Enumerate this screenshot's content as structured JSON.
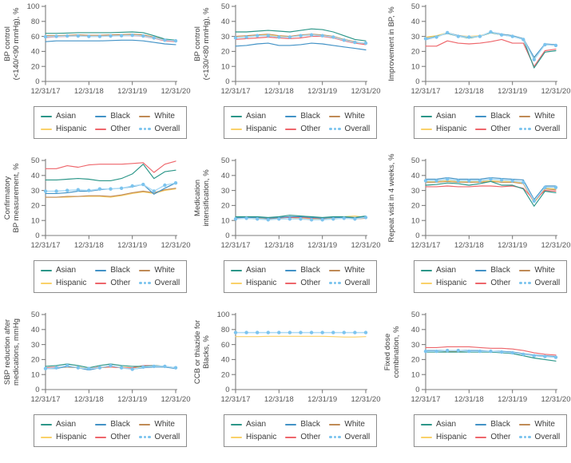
{
  "figure": {
    "x_tick_labels": [
      "12/31/17",
      "12/31/18",
      "12/31/19",
      "12/31/20"
    ],
    "n_points": 13
  },
  "colors": {
    "asian": "#2b9688",
    "black": "#4292c6",
    "white": "#bf8a55",
    "hispanic": "#fad169",
    "other": "#ee666b",
    "overall_dot": "#7cc4ee",
    "overall_line": "#abdaf5",
    "axis": "#7d7d7d",
    "tick_text": "#565656",
    "label_text": "#3c3c3c"
  },
  "legend": {
    "items": [
      {
        "key": "asian",
        "label": "Asian"
      },
      {
        "key": "black",
        "label": "Black"
      },
      {
        "key": "white",
        "label": "White"
      },
      {
        "key": "hispanic",
        "label": "Hispanic"
      },
      {
        "key": "other",
        "label": "Other"
      },
      {
        "key": "overall",
        "label": "Overall"
      }
    ]
  },
  "chart_data": [
    {
      "id": "bp-control-140-90",
      "type": "line",
      "ylabel_lines": [
        "BP control",
        "(<140/<90 mmHg), %"
      ],
      "ylim": [
        0,
        100
      ],
      "ytick_step": 20,
      "series": [
        {
          "key": "white",
          "name": "White",
          "values": [
            61,
            61,
            61.5,
            62,
            61.5,
            61.5,
            62,
            62.5,
            63,
            62,
            59,
            55.5,
            54.5
          ]
        },
        {
          "key": "hispanic",
          "name": "Hispanic",
          "values": [
            59.5,
            60,
            60.5,
            60.5,
            60,
            60,
            60.5,
            61,
            61.5,
            60.5,
            58,
            54.5,
            53.5
          ]
        },
        {
          "key": "other",
          "name": "Other",
          "values": [
            58.5,
            59.5,
            60,
            60.5,
            60,
            60,
            60.5,
            61,
            61,
            60,
            57.5,
            54,
            53
          ]
        },
        {
          "key": "black",
          "name": "Black",
          "values": [
            53,
            54,
            54,
            54,
            54,
            54,
            54.5,
            55,
            55,
            54,
            52,
            50,
            49
          ]
        },
        {
          "key": "asian",
          "name": "Asian",
          "values": [
            64,
            64,
            64.5,
            65,
            65,
            65,
            65,
            65.5,
            66,
            65,
            61,
            56.5,
            55
          ]
        },
        {
          "key": "overall",
          "name": "Overall",
          "values": [
            59.5,
            60,
            60.5,
            60.5,
            60,
            60,
            60.5,
            61,
            61.5,
            60.5,
            58,
            55,
            54
          ]
        }
      ]
    },
    {
      "id": "bp-control-130-80",
      "type": "line",
      "ylabel_lines": [
        "BP control",
        "(<130/<80 mmHg), %"
      ],
      "ylim": [
        0,
        50
      ],
      "ytick_step": 10,
      "series": [
        {
          "key": "white",
          "name": "White",
          "values": [
            30,
            30.5,
            31,
            31.5,
            30.5,
            30,
            31,
            31.5,
            31,
            30,
            28,
            26.5,
            25
          ]
        },
        {
          "key": "hispanic",
          "name": "Hispanic",
          "values": [
            29,
            29.5,
            30.5,
            31,
            30,
            29.5,
            30.5,
            31,
            30.5,
            29.5,
            27.5,
            26,
            25.5
          ]
        },
        {
          "key": "other",
          "name": "Other",
          "values": [
            28,
            28.5,
            29,
            29.5,
            29,
            28.5,
            29,
            30,
            30,
            29,
            27,
            25.5,
            24.5
          ]
        },
        {
          "key": "black",
          "name": "Black",
          "values": [
            23.5,
            24,
            25,
            25.5,
            24,
            24,
            24.5,
            25.5,
            25,
            24,
            23,
            22,
            21
          ]
        },
        {
          "key": "asian",
          "name": "Asian",
          "values": [
            33,
            33,
            33.5,
            34,
            33.5,
            33,
            34,
            35,
            34.5,
            33,
            30.5,
            28,
            27
          ]
        },
        {
          "key": "overall",
          "name": "Overall",
          "values": [
            29,
            29.5,
            30.5,
            30.5,
            29.5,
            29.5,
            30.5,
            31,
            30.5,
            29.5,
            27.5,
            26,
            25.5
          ]
        }
      ]
    },
    {
      "id": "improvement-in-bp",
      "type": "line",
      "ylabel_lines": [
        "Improvement in BP, %"
      ],
      "ylim": [
        0,
        50
      ],
      "ytick_step": 10,
      "series": [
        {
          "key": "white",
          "name": "White",
          "values": [
            29,
            30,
            32,
            30,
            29.5,
            30,
            32.5,
            31,
            30,
            28,
            15,
            24.5,
            24
          ]
        },
        {
          "key": "hispanic",
          "name": "Hispanic",
          "values": [
            29.5,
            30.5,
            32.5,
            30.5,
            30,
            30.5,
            32.5,
            31.5,
            30.5,
            28.5,
            15.5,
            24.5,
            24
          ]
        },
        {
          "key": "other",
          "name": "Other",
          "values": [
            23.5,
            23.5,
            27,
            25.5,
            25,
            25.5,
            26.5,
            28,
            25.5,
            25.5,
            10,
            20.5,
            21.5
          ]
        },
        {
          "key": "asian",
          "name": "Asian",
          "values": [
            28.5,
            30,
            32,
            30,
            29,
            30,
            32.5,
            31,
            30,
            28,
            9,
            19.5,
            20.5
          ]
        },
        {
          "key": "black",
          "name": "Black",
          "values": [
            28,
            29.5,
            32.5,
            30.5,
            29.5,
            30,
            33,
            31.5,
            30.5,
            28.5,
            16,
            25,
            24.5
          ]
        },
        {
          "key": "overall",
          "name": "Overall",
          "values": [
            28.5,
            29.5,
            32.5,
            30,
            29.5,
            30,
            33,
            31,
            30,
            28,
            14.5,
            24.5,
            24
          ]
        }
      ]
    },
    {
      "id": "confirmatory-bp-measurement",
      "type": "line",
      "ylabel_lines": [
        "Confirmatory",
        "BP measurement, %"
      ],
      "ylim": [
        0,
        50
      ],
      "ytick_step": 10,
      "series": [
        {
          "key": "hispanic",
          "name": "Hispanic",
          "values": [
            25.5,
            25.5,
            25.5,
            26,
            26,
            26,
            25.5,
            26.5,
            28,
            29,
            28,
            30,
            31
          ]
        },
        {
          "key": "white",
          "name": "White",
          "values": [
            25.5,
            25.5,
            26,
            26,
            26.5,
            26.5,
            26,
            27,
            28.5,
            29.5,
            28.5,
            30.5,
            31.5
          ]
        },
        {
          "key": "other",
          "name": "Other",
          "values": [
            44.5,
            44.5,
            46.5,
            45.5,
            47,
            47.5,
            47.5,
            47.5,
            48,
            48.5,
            42,
            47.5,
            49.5
          ]
        },
        {
          "key": "black",
          "name": "Black",
          "values": [
            28,
            28,
            28.5,
            29.5,
            29.5,
            30.5,
            31,
            31.5,
            32.5,
            34,
            27.5,
            31.5,
            35
          ]
        },
        {
          "key": "asian",
          "name": "Asian",
          "values": [
            37,
            37,
            37.5,
            38,
            37.5,
            36.5,
            36.5,
            38,
            41,
            47.5,
            38,
            42.5,
            43.5
          ]
        },
        {
          "key": "overall",
          "name": "Overall",
          "values": [
            29.5,
            29.5,
            30,
            30.5,
            30,
            31,
            31,
            31.5,
            33,
            34,
            29.5,
            33.5,
            35
          ]
        }
      ]
    },
    {
      "id": "medication-intensification",
      "type": "line",
      "ylabel_lines": [
        "Medication",
        "intensification, %"
      ],
      "ylim": [
        0,
        50
      ],
      "ytick_step": 10,
      "series": [
        {
          "key": "white",
          "name": "White",
          "values": [
            11.5,
            11.5,
            11,
            11,
            11.5,
            11,
            11,
            10.5,
            11,
            11,
            11.5,
            11,
            11.5
          ]
        },
        {
          "key": "hispanic",
          "name": "Hispanic",
          "values": [
            12,
            12,
            11.5,
            11.5,
            12,
            12,
            11.5,
            11,
            11.5,
            11.5,
            12.5,
            13,
            12
          ]
        },
        {
          "key": "other",
          "name": "Other",
          "values": [
            12,
            12.5,
            12,
            11.5,
            12,
            12,
            12,
            11.5,
            11.5,
            12,
            12,
            12,
            12
          ]
        },
        {
          "key": "black",
          "name": "Black",
          "values": [
            12,
            12,
            12,
            11.5,
            12,
            12.5,
            12.5,
            12,
            11.5,
            12,
            12,
            11.5,
            12.5
          ]
        },
        {
          "key": "asian",
          "name": "Asian",
          "values": [
            12.5,
            12.5,
            12.5,
            12,
            12.5,
            13.5,
            13,
            12.5,
            12,
            12.5,
            12.5,
            12,
            13
          ]
        },
        {
          "key": "overall",
          "name": "Overall",
          "values": [
            11,
            11.5,
            11,
            10.5,
            11,
            11,
            11,
            10.5,
            10.5,
            11,
            11.5,
            11,
            12
          ]
        }
      ]
    },
    {
      "id": "repeat-visit-4-weeks",
      "type": "line",
      "ylabel_lines": [
        "Repeat visit in 4 weeks, %"
      ],
      "ylim": [
        0,
        50
      ],
      "ytick_step": 10,
      "series": [
        {
          "key": "white",
          "name": "White",
          "values": [
            35.5,
            35.5,
            36,
            35.5,
            35.5,
            35.5,
            36,
            35.5,
            35.5,
            34.5,
            22,
            31,
            30.5
          ]
        },
        {
          "key": "hispanic",
          "name": "Hispanic",
          "values": [
            36,
            36,
            36.5,
            36,
            36,
            36,
            36.5,
            36,
            36,
            35,
            22.5,
            31.5,
            31
          ]
        },
        {
          "key": "other",
          "name": "Other",
          "values": [
            32.5,
            32.5,
            33,
            32.5,
            32.5,
            33,
            33,
            32.5,
            33,
            31.5,
            23.5,
            30,
            29.5
          ]
        },
        {
          "key": "asian",
          "name": "Asian",
          "values": [
            33.5,
            34,
            35,
            34.5,
            33.5,
            34.5,
            36,
            33.5,
            33.5,
            31,
            19.5,
            29.5,
            28.5
          ]
        },
        {
          "key": "black",
          "name": "Black",
          "values": [
            37.5,
            37.5,
            38.5,
            37.5,
            37.5,
            37.5,
            38.5,
            38,
            37.5,
            37,
            24,
            33,
            33
          ]
        },
        {
          "key": "overall",
          "name": "Overall",
          "values": [
            36.5,
            36.5,
            37.5,
            36.5,
            36.5,
            36.5,
            37.5,
            37,
            36.5,
            35.5,
            23,
            32,
            32
          ]
        }
      ]
    },
    {
      "id": "sbp-reduction-after-medications",
      "type": "line",
      "ylabel_lines": [
        "SBP reduction after",
        "medications, mmHg"
      ],
      "ylim": [
        0,
        50
      ],
      "ytick_step": 10,
      "series": [
        {
          "key": "white",
          "name": "White",
          "values": [
            14.5,
            14.5,
            15,
            14.5,
            14,
            14.5,
            15,
            14.5,
            14.5,
            15,
            15.5,
            15,
            14.5
          ]
        },
        {
          "key": "hispanic",
          "name": "Hispanic",
          "values": [
            14.5,
            15,
            15.5,
            15,
            14,
            15,
            15.5,
            15,
            14.5,
            15.5,
            15.5,
            15.5,
            14.5
          ]
        },
        {
          "key": "other",
          "name": "Other",
          "values": [
            14.5,
            15,
            15.5,
            14.5,
            14,
            15,
            15,
            14.5,
            14.5,
            16,
            16,
            15.5,
            14.5
          ]
        },
        {
          "key": "black",
          "name": "Black",
          "values": [
            14,
            14,
            15.5,
            14.5,
            13,
            14.5,
            16,
            14.5,
            13.5,
            14.5,
            15,
            15,
            14
          ]
        },
        {
          "key": "asian",
          "name": "Asian",
          "values": [
            15.5,
            16,
            17,
            16,
            14.5,
            16,
            17,
            16,
            15.5,
            15.5,
            16,
            15.5,
            14.5
          ]
        },
        {
          "key": "overall",
          "name": "Overall",
          "values": [
            14,
            14.5,
            16,
            14.5,
            14,
            14.5,
            16,
            14.5,
            13.5,
            15,
            15.5,
            15.5,
            14.5
          ]
        }
      ]
    },
    {
      "id": "ccb-or-thiazide-for-blacks",
      "type": "line",
      "ylabel_lines": [
        "CCB or thiazide for",
        "Blacks, %"
      ],
      "ylim": [
        0,
        100
      ],
      "ytick_step": 20,
      "series": [
        {
          "key": "hispanic",
          "name": "Hispanic",
          "values": [
            70.5,
            70.5,
            70.5,
            71,
            71,
            71,
            71,
            71,
            71,
            70.5,
            70,
            70,
            70.5
          ]
        },
        {
          "key": "overall",
          "name": "Overall",
          "values": [
            76,
            76,
            76,
            76,
            76,
            76,
            76,
            76,
            76,
            76,
            76,
            76,
            76
          ]
        }
      ]
    },
    {
      "id": "fixed-dose-combination",
      "type": "line",
      "ylabel_lines": [
        "Fixed dose",
        "combination, %"
      ],
      "ylim": [
        0,
        50
      ],
      "ytick_step": 10,
      "series": [
        {
          "key": "white",
          "name": "White",
          "values": [
            25.5,
            25.5,
            25.5,
            25.5,
            25.5,
            25.5,
            25,
            25,
            24.5,
            23.5,
            22.5,
            22,
            21.5
          ]
        },
        {
          "key": "hispanic",
          "name": "Hispanic",
          "values": [
            25.5,
            25.5,
            26,
            26,
            26,
            25.5,
            25.5,
            25,
            24.5,
            23.5,
            22.5,
            22,
            21.5
          ]
        },
        {
          "key": "other",
          "name": "Other",
          "values": [
            28,
            28,
            28.5,
            28.5,
            28.5,
            28,
            27.5,
            27.5,
            27,
            26,
            24.5,
            23.5,
            23
          ]
        },
        {
          "key": "asian",
          "name": "Asian",
          "values": [
            25,
            25,
            25,
            25,
            25,
            25,
            25,
            24.5,
            24,
            22.5,
            21,
            20,
            19
          ]
        },
        {
          "key": "black",
          "name": "Black",
          "values": [
            26,
            26,
            26,
            26,
            26,
            26,
            25.5,
            25.5,
            25,
            24,
            23,
            22.5,
            22
          ]
        },
        {
          "key": "overall",
          "name": "Overall",
          "values": [
            25.5,
            25.5,
            26,
            26,
            25.5,
            25.5,
            25.5,
            25,
            24.5,
            23.5,
            22.5,
            22,
            21.5
          ]
        }
      ]
    }
  ]
}
